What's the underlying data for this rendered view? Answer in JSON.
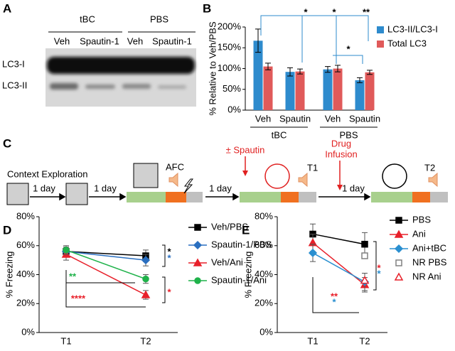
{
  "panel_labels": [
    "A",
    "B",
    "C",
    "D",
    "E"
  ],
  "blot": {
    "groups": [
      "tBC",
      "PBS"
    ],
    "lanes": [
      "Veh",
      "Spautin-1",
      "Veh",
      "Spautin-1"
    ],
    "bands": [
      "LC3-I",
      "LC3-II"
    ]
  },
  "protocol": {
    "context": "Context Exploration",
    "day_labels": [
      "1 day",
      "1 day",
      "1 day",
      "1 day"
    ],
    "afc": "AFC",
    "spautin": "± Spautin",
    "t1": "T1",
    "drug_infusion": [
      "Drug",
      "Infusion"
    ],
    "t2": "T2"
  },
  "chart_data": [
    {
      "type": "bar",
      "ylabel": "% Relative to Veh/PBS",
      "categories": [
        "Veh",
        "Spautin",
        "Veh",
        "Spautin"
      ],
      "group_labels": [
        "tBC",
        "PBS"
      ],
      "ylim": [
        0,
        200
      ],
      "yticks": [
        {
          "value": 0,
          "label": "0%"
        },
        {
          "value": 50,
          "label": "50%"
        },
        {
          "value": 100,
          "label": "100%"
        },
        {
          "value": 150,
          "label": "150%"
        },
        {
          "value": 200,
          "label": "200%"
        }
      ],
      "series": [
        {
          "name": "LC3-II/LC3-I",
          "color": "#2e8bcd",
          "values": [
            167,
            92,
            98,
            72
          ],
          "errors": [
            28,
            10,
            7,
            6
          ]
        },
        {
          "name": "Total LC3",
          "color": "#e05a5a",
          "values": [
            105,
            93,
            100,
            91
          ],
          "errors": [
            8,
            6,
            8,
            5
          ]
        }
      ],
      "annotations": [
        "*",
        "*",
        "**",
        "*"
      ],
      "legend": "right"
    },
    {
      "type": "line",
      "ylabel": "% Freezing",
      "categories": [
        "T1",
        "T2"
      ],
      "ylim": [
        0,
        80
      ],
      "yticks": [
        {
          "value": 0,
          "label": "0%"
        },
        {
          "value": 20,
          "label": "20%"
        },
        {
          "value": 40,
          "label": "40%"
        },
        {
          "value": 60,
          "label": "60%"
        },
        {
          "value": 80,
          "label": "80%"
        }
      ],
      "series": [
        {
          "name": "Veh/PBS",
          "color": "#000000",
          "marker": "square",
          "values": [
            56,
            53
          ],
          "errors": [
            3,
            4
          ]
        },
        {
          "name": "Spautin-1/PBS",
          "color": "#2a6fc0",
          "marker": "diamond",
          "values": [
            56,
            50
          ],
          "errors": [
            3,
            4
          ]
        },
        {
          "name": "Veh/Ani",
          "color": "#e8202a",
          "marker": "triangle",
          "values": [
            54,
            26
          ],
          "errors": [
            4,
            3
          ]
        },
        {
          "name": "Spautin-1/Ani",
          "color": "#1fb24a",
          "marker": "circle",
          "values": [
            57,
            37
          ],
          "errors": [
            3,
            3
          ]
        }
      ],
      "annotations": [
        "**",
        "****",
        "*",
        "*",
        "*"
      ],
      "legend": "right"
    },
    {
      "type": "line",
      "ylabel": "% Freezing",
      "categories": [
        "T1",
        "T2"
      ],
      "ylim": [
        0,
        80
      ],
      "yticks": [
        {
          "value": 0,
          "label": "0%"
        },
        {
          "value": 20,
          "label": "20%"
        },
        {
          "value": 40,
          "label": "40%"
        },
        {
          "value": 60,
          "label": "60%"
        },
        {
          "value": 80,
          "label": "80%"
        }
      ],
      "series": [
        {
          "name": "PBS",
          "color": "#000000",
          "marker": "square",
          "values": [
            68,
            61
          ],
          "errors": [
            7,
            8
          ]
        },
        {
          "name": "Ani",
          "color": "#e8202a",
          "marker": "triangle",
          "values": [
            62,
            33
          ],
          "errors": [
            6,
            5
          ]
        },
        {
          "name": "Ani+tBC",
          "color": "#2a8fd0",
          "marker": "diamond",
          "values": [
            55,
            35
          ],
          "errors": [
            6,
            6
          ]
        },
        {
          "name": "NR PBS",
          "color": "#808080",
          "marker": "open-square",
          "values": [
            null,
            53
          ]
        },
        {
          "name": "NR Ani",
          "color": "#e8202a",
          "marker": "open-triangle",
          "values": [
            null,
            36
          ]
        }
      ],
      "annotations": [
        "**",
        "*",
        "*",
        "*"
      ],
      "legend": "right"
    }
  ]
}
